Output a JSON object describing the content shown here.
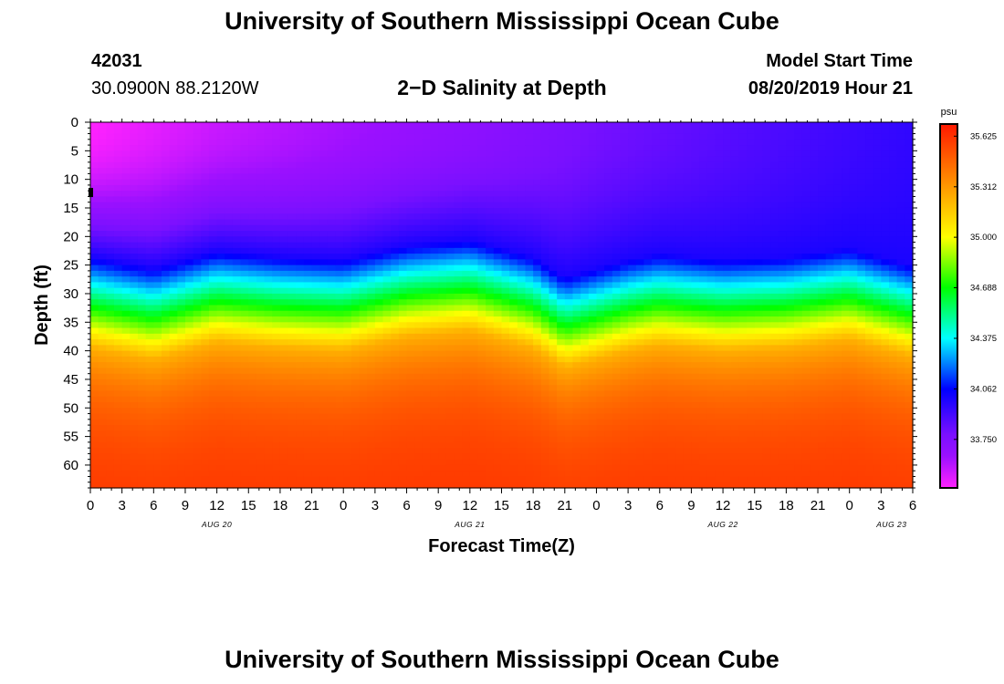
{
  "header": {
    "title": "University of Southern Mississippi Ocean Cube",
    "station_id": "42031",
    "station_coords": "30.0900N 88.2120W",
    "chart_title": "2−D Salinity at Depth",
    "start_label": "Model Start Time",
    "start_time": "08/20/2019 Hour 21"
  },
  "footer": {
    "title": "University of Southern Mississippi Ocean Cube"
  },
  "chart_data": {
    "type": "heatmap",
    "title": "2−D Salinity at Depth",
    "xlabel": "Forecast Time(Z)",
    "ylabel": "Depth (ft)",
    "x_unit": "hours since Aug 20 00Z",
    "xlim": [
      0,
      78
    ],
    "ylim": [
      0,
      64
    ],
    "x_ticks": [
      0,
      3,
      6,
      9,
      12,
      15,
      18,
      21,
      24,
      27,
      30,
      33,
      36,
      39,
      42,
      45,
      48,
      51,
      54,
      57,
      60,
      63,
      66,
      69,
      72,
      75,
      78
    ],
    "x_tick_labels": [
      "0",
      "3",
      "6",
      "9",
      "12",
      "15",
      "18",
      "21",
      "0",
      "3",
      "6",
      "9",
      "12",
      "15",
      "18",
      "21",
      "0",
      "3",
      "6",
      "9",
      "12",
      "15",
      "18",
      "21",
      "0",
      "3",
      "6"
    ],
    "y_ticks": [
      0,
      5,
      10,
      15,
      20,
      25,
      30,
      35,
      40,
      45,
      50,
      55,
      60
    ],
    "y_tick_labels": [
      "0",
      "5",
      "10",
      "15",
      "20",
      "25",
      "30",
      "35",
      "40",
      "45",
      "50",
      "55",
      "60"
    ],
    "day_labels": [
      {
        "label": "AUG 20",
        "hour": 12
      },
      {
        "label": "AUG 21",
        "hour": 36
      },
      {
        "label": "AUG 22",
        "hour": 60
      },
      {
        "label": "AUG 23",
        "hour": 76
      }
    ],
    "halocline_depth_ft": {
      "hours": [
        0,
        6,
        12,
        18,
        24,
        30,
        36,
        42,
        45,
        51,
        54,
        60,
        66,
        72,
        78
      ],
      "values": [
        28.5,
        30.5,
        27.5,
        28.5,
        29,
        26.5,
        25.5,
        28.5,
        32,
        29,
        28,
        29,
        28.5,
        27,
        30
      ]
    },
    "surface_salinity_psu": {
      "hours": [
        0,
        12,
        24,
        36,
        48,
        60,
        72,
        78
      ],
      "values": [
        33.45,
        33.56,
        33.63,
        33.7,
        33.79,
        33.86,
        33.92,
        33.95
      ]
    },
    "bottom_salinity_psu": 35.62,
    "colorbar": {
      "unit": "psu",
      "min": 33.45,
      "max": 35.7,
      "tick_labels": [
        "35.625",
        "35.312",
        "35.000",
        "34.688",
        "34.375",
        "34.062",
        "33.750"
      ],
      "tick_values": [
        35.625,
        35.312,
        35.0,
        34.688,
        34.375,
        34.062,
        33.75
      ],
      "colors": [
        "#ff22ff",
        "#9a10ff",
        "#7a10ff",
        "#0000ff",
        "#00ffff",
        "#00ff00",
        "#ffff00",
        "#ff9800",
        "#ff1800"
      ],
      "color_stops": [
        33.45,
        33.65,
        33.78,
        34.06,
        34.375,
        34.688,
        35.0,
        35.312,
        35.7
      ]
    },
    "marker": {
      "hour": 0,
      "depth": 12.3,
      "color": "#000000"
    }
  }
}
